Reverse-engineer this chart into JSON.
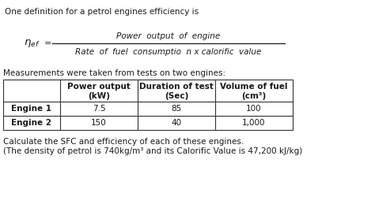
{
  "title_text": "One definition for a petrol engines efficiency is",
  "formula_numerator": "Power  output  of  engine",
  "formula_denominator": "Rate  of  fuel  consumptio  n x calorific  value",
  "measurement_text": "Measurements were taken from tests on two engines:",
  "col_headers_line1": [
    "",
    "Power output",
    "Duration of test",
    "Volume of fuel"
  ],
  "col_headers_line2": [
    "",
    "(kW)",
    "(Sec)",
    "(cm³)"
  ],
  "row_labels": [
    "Engine 1",
    "Engine 2"
  ],
  "table_data": [
    [
      "7.5",
      "85",
      "100"
    ],
    [
      "150",
      "40",
      "1,000"
    ]
  ],
  "footer_line1": "Calculate the SFC and efficiency of each of these engines.",
  "footer_line2": "(The density of petrol is 740kg/m³ and its Calorific Value is 47,200 kJ/kg)",
  "bg_color": "#ffffff",
  "text_color": "#1a1a1a",
  "table_border_color": "#333333",
  "font_size_main": 7.5,
  "font_size_formula": 8.0,
  "font_size_table": 7.5
}
